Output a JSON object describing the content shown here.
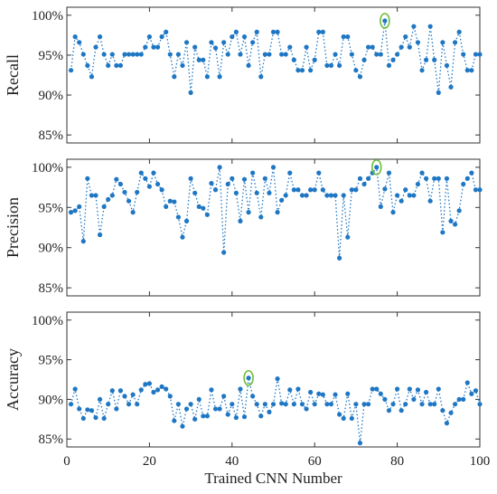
{
  "chart_data": [
    {
      "type": "scatter",
      "ylabel": "Recall",
      "ylim": [
        84,
        101
      ],
      "yticks": [
        85,
        90,
        95,
        100
      ],
      "ytick_labels": [
        "85%",
        "90%",
        "95%",
        "100%"
      ],
      "xlim": [
        0,
        100
      ],
      "xticks": [
        0,
        20,
        40,
        60,
        80,
        100
      ],
      "xtick_labels": [
        "0",
        "20",
        "40",
        "60",
        "80",
        "100"
      ],
      "show_xtick_labels": false,
      "series": [
        {
          "x": [
            1,
            2,
            3,
            4,
            5,
            6,
            7,
            8,
            9,
            10,
            11,
            12,
            13,
            14,
            15,
            16,
            17,
            18,
            19,
            20,
            21,
            22,
            23,
            24,
            25,
            26,
            27,
            28,
            29,
            30,
            31,
            32,
            33,
            34,
            35,
            36,
            37,
            38,
            39,
            40,
            41,
            42,
            43,
            44,
            45,
            46,
            47,
            48,
            49,
            50,
            51,
            52,
            53,
            54,
            55,
            56,
            57,
            58,
            59,
            60,
            61,
            62,
            63,
            64,
            65,
            66,
            67,
            68,
            69,
            70,
            71,
            72,
            73,
            74,
            75,
            76,
            77,
            78,
            79,
            80,
            81,
            82,
            83,
            84,
            85,
            86,
            87,
            88,
            89,
            90,
            91,
            92,
            93,
            94,
            95,
            96,
            97,
            98,
            99,
            100
          ],
          "y": [
            93.1,
            97.3,
            96.6,
            95.1,
            93.7,
            92.3,
            96.0,
            97.3,
            95.1,
            93.7,
            95.1,
            93.7,
            93.7,
            95.1,
            95.1,
            95.1,
            95.1,
            95.1,
            96.0,
            97.3,
            96.0,
            96.0,
            97.3,
            97.9,
            95.1,
            92.3,
            95.1,
            93.7,
            96.6,
            90.3,
            96.0,
            94.4,
            94.4,
            92.3,
            96.6,
            95.9,
            92.3,
            96.6,
            95.1,
            97.3,
            97.9,
            95.1,
            97.3,
            93.7,
            96.6,
            97.9,
            92.3,
            95.1,
            95.1,
            97.9,
            97.9,
            95.1,
            95.1,
            96.0,
            94.4,
            93.1,
            93.1,
            96.0,
            93.1,
            94.4,
            97.9,
            97.9,
            93.7,
            93.7,
            95.1,
            93.7,
            97.3,
            97.3,
            95.1,
            93.1,
            92.3,
            94.4,
            96.0,
            96.0,
            95.1,
            95.1,
            99.3,
            93.7,
            94.4,
            95.1,
            96.0,
            97.3,
            96.0,
            98.6,
            96.6,
            93.1,
            94.4,
            98.6,
            94.4,
            90.3,
            96.6,
            93.7,
            91.0,
            96.6,
            97.9,
            95.1,
            93.1,
            93.1,
            95.1,
            95.1
          ]
        }
      ],
      "highlight": {
        "x": 77,
        "y": 99.3
      }
    },
    {
      "type": "scatter",
      "ylabel": "Precision",
      "ylim": [
        84,
        101
      ],
      "yticks": [
        85,
        90,
        95,
        100
      ],
      "ytick_labels": [
        "85%",
        "90%",
        "95%",
        "100%"
      ],
      "xlim": [
        0,
        100
      ],
      "xticks": [
        0,
        20,
        40,
        60,
        80,
        100
      ],
      "xtick_labels": [
        "0",
        "20",
        "40",
        "60",
        "80",
        "100"
      ],
      "show_xtick_labels": false,
      "series": [
        {
          "x": [
            1,
            2,
            3,
            4,
            5,
            6,
            7,
            8,
            9,
            10,
            11,
            12,
            13,
            14,
            15,
            16,
            17,
            18,
            19,
            20,
            21,
            22,
            23,
            24,
            25,
            26,
            27,
            28,
            29,
            30,
            31,
            32,
            33,
            34,
            35,
            36,
            37,
            38,
            39,
            40,
            41,
            42,
            43,
            44,
            45,
            46,
            47,
            48,
            49,
            50,
            51,
            52,
            53,
            54,
            55,
            56,
            57,
            58,
            59,
            60,
            61,
            62,
            63,
            64,
            65,
            66,
            67,
            68,
            69,
            70,
            71,
            72,
            73,
            74,
            75,
            76,
            77,
            78,
            79,
            80,
            81,
            82,
            83,
            84,
            85,
            86,
            87,
            88,
            89,
            90,
            91,
            92,
            93,
            94,
            95,
            96,
            97,
            98,
            99,
            100
          ],
          "y": [
            94.4,
            94.6,
            95.1,
            90.8,
            98.6,
            96.5,
            96.5,
            91.6,
            95.1,
            96.0,
            96.5,
            98.5,
            97.9,
            96.9,
            95.8,
            94.4,
            96.9,
            99.3,
            98.6,
            97.6,
            99.3,
            97.9,
            97.2,
            95.1,
            95.8,
            95.7,
            93.8,
            91.3,
            93.3,
            98.6,
            96.8,
            95.1,
            94.9,
            94.1,
            98.0,
            97.2,
            100.0,
            89.4,
            97.9,
            98.6,
            96.8,
            93.3,
            98.5,
            94.4,
            99.3,
            96.8,
            93.8,
            98.6,
            96.8,
            100.0,
            94.4,
            95.9,
            96.5,
            99.3,
            97.2,
            97.2,
            96.5,
            96.5,
            97.2,
            97.2,
            99.3,
            97.2,
            96.5,
            96.5,
            96.5,
            88.7,
            96.5,
            91.3,
            97.2,
            97.2,
            98.6,
            97.9,
            98.6,
            99.3,
            100.0,
            95.1,
            97.3,
            99.3,
            94.4,
            96.5,
            95.8,
            97.2,
            96.5,
            96.5,
            97.9,
            99.3,
            98.6,
            95.8,
            98.6,
            98.6,
            91.9,
            98.6,
            93.3,
            92.9,
            94.6,
            97.9,
            98.6,
            99.3,
            97.2,
            97.2
          ]
        }
      ],
      "highlight": {
        "x": 75,
        "y": 100.0
      }
    },
    {
      "type": "scatter",
      "ylabel": "Accuracy",
      "xlabel": "Trained CNN Number",
      "ylim": [
        84,
        101
      ],
      "yticks": [
        85,
        90,
        95,
        100
      ],
      "ytick_labels": [
        "85%",
        "90%",
        "95%",
        "100%"
      ],
      "xlim": [
        0,
        100
      ],
      "xticks": [
        0,
        20,
        40,
        60,
        80,
        100
      ],
      "xtick_labels": [
        "0",
        "20",
        "40",
        "60",
        "80",
        "100"
      ],
      "show_xtick_labels": true,
      "series": [
        {
          "x": [
            1,
            2,
            3,
            4,
            5,
            6,
            7,
            8,
            9,
            10,
            11,
            12,
            13,
            14,
            15,
            16,
            17,
            18,
            19,
            20,
            21,
            22,
            23,
            24,
            25,
            26,
            27,
            28,
            29,
            30,
            31,
            32,
            33,
            34,
            35,
            36,
            37,
            38,
            39,
            40,
            41,
            42,
            43,
            44,
            45,
            46,
            47,
            48,
            49,
            50,
            51,
            52,
            53,
            54,
            55,
            56,
            57,
            58,
            59,
            60,
            61,
            62,
            63,
            64,
            65,
            66,
            67,
            68,
            69,
            70,
            71,
            72,
            73,
            74,
            75,
            76,
            77,
            78,
            79,
            80,
            81,
            82,
            83,
            84,
            85,
            86,
            87,
            88,
            89,
            90,
            91,
            92,
            93,
            94,
            95,
            96,
            97,
            98,
            99,
            100
          ],
          "y": [
            89.4,
            91.3,
            88.8,
            87.6,
            88.7,
            88.6,
            87.7,
            90.0,
            87.6,
            89.4,
            91.1,
            88.8,
            91.1,
            90.4,
            89.4,
            90.6,
            89.4,
            91.2,
            91.9,
            92.0,
            90.9,
            91.2,
            91.6,
            91.3,
            90.4,
            87.3,
            89.4,
            86.6,
            88.8,
            89.4,
            87.5,
            90.0,
            87.9,
            87.9,
            91.2,
            88.8,
            88.8,
            90.4,
            88.1,
            89.4,
            87.7,
            91.3,
            87.8,
            92.7,
            90.4,
            89.4,
            87.9,
            89.4,
            88.4,
            89.4,
            92.6,
            89.5,
            89.4,
            91.2,
            89.4,
            91.3,
            89.4,
            88.8,
            90.9,
            89.4,
            90.7,
            90.6,
            89.4,
            89.4,
            90.6,
            88.1,
            87.6,
            90.7,
            87.6,
            89.4,
            84.5,
            89.4,
            89.4,
            91.3,
            91.3,
            90.7,
            90.0,
            88.6,
            89.4,
            91.3,
            88.6,
            89.4,
            91.3,
            90.0,
            91.2,
            89.4,
            90.9,
            89.4,
            89.4,
            91.3,
            88.6,
            87.0,
            88.3,
            89.4,
            90.0,
            90.0,
            92.1,
            90.7,
            91.1,
            89.4
          ]
        }
      ],
      "highlight": {
        "x": 44,
        "y": 92.7
      }
    }
  ]
}
